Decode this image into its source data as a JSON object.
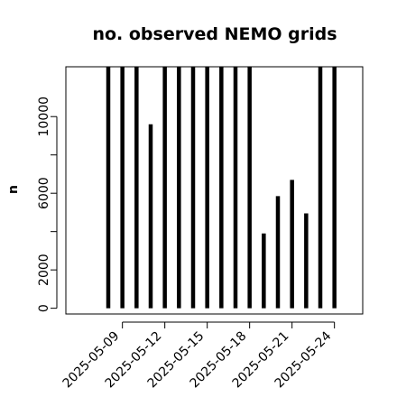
{
  "chart_data": {
    "type": "bar",
    "title": "no. observed NEMO grids",
    "xlabel": "",
    "ylabel": "n",
    "x": [
      "2025-05-08",
      "2025-05-09",
      "2025-05-10",
      "2025-05-11",
      "2025-05-12",
      "2025-05-13",
      "2025-05-14",
      "2025-05-15",
      "2025-05-16",
      "2025-05-17",
      "2025-05-18",
      "2025-05-19",
      "2025-05-20",
      "2025-05-21",
      "2025-05-22",
      "2025-05-23",
      "2025-05-24"
    ],
    "values": [
      12600,
      12600,
      12600,
      9600,
      12600,
      12600,
      12600,
      12600,
      12600,
      12600,
      12600,
      3900,
      5850,
      6700,
      4950,
      12600,
      12600
    ],
    "xlim": [
      "2025-05-05",
      "2025-05-26"
    ],
    "ylim": [
      -300,
      12600
    ],
    "x_ticks": [
      "2025-05-09",
      "2025-05-12",
      "2025-05-15",
      "2025-05-18",
      "2025-05-21",
      "2025-05-24"
    ],
    "y_ticks": [
      0,
      2000,
      6000,
      10000
    ],
    "bar_color": "#000000",
    "grid": false,
    "legend": "none"
  }
}
